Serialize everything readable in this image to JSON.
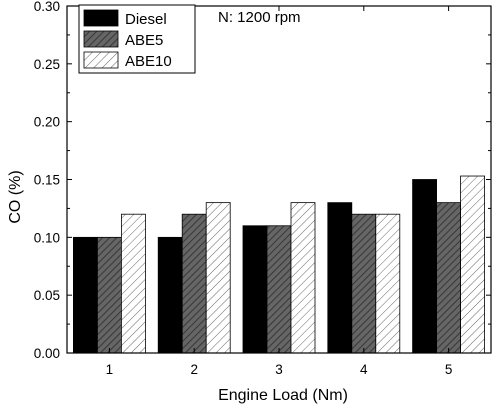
{
  "chart_data": {
    "type": "bar",
    "annotation": "N: 1200 rpm",
    "xlabel": "Engine Load (Nm)",
    "ylabel": "CO (%)",
    "categories": [
      "1",
      "2",
      "3",
      "4",
      "5"
    ],
    "ylim": [
      0,
      0.3
    ],
    "yticks": [
      "0.00",
      "0.05",
      "0.10",
      "0.15",
      "0.20",
      "0.25",
      "0.30"
    ],
    "legend_position": "top-left",
    "grid": false,
    "series": [
      {
        "name": "Diesel",
        "values": [
          0.1,
          0.1,
          0.11,
          0.13,
          0.15
        ],
        "fill": "solid",
        "color": "#000000"
      },
      {
        "name": "ABE5",
        "values": [
          0.1,
          0.12,
          0.11,
          0.12,
          0.13
        ],
        "fill": "dense-diagonal-hatch",
        "color": "#666666"
      },
      {
        "name": "ABE10",
        "values": [
          0.12,
          0.13,
          0.13,
          0.12,
          0.153
        ],
        "fill": "light-diagonal-hatch",
        "color": "#ffffff"
      }
    ]
  }
}
